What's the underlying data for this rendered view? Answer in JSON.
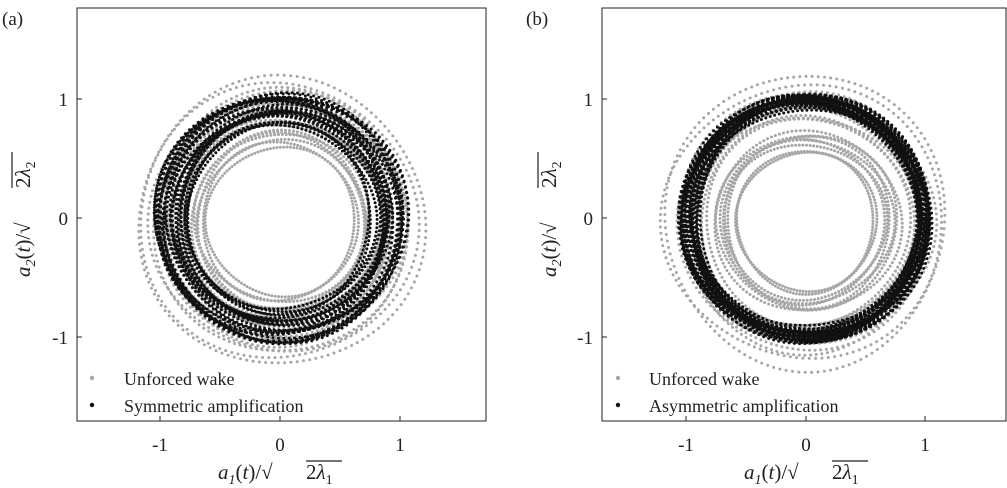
{
  "chart_data": [
    {
      "type": "scatter",
      "panel_label": "(a)",
      "xlim": [
        -1.7,
        1.75
      ],
      "ylim": [
        -1.75,
        1.7
      ],
      "xticks": [
        -1,
        0,
        1
      ],
      "yticks": [
        -1,
        0,
        1
      ],
      "xtick_labels": [
        "-1",
        "0",
        "1"
      ],
      "ytick_labels": [
        "-1",
        "0",
        "1"
      ],
      "grid": false,
      "legend_placement": "bottom-left",
      "series": [
        {
          "name": "Unforced wake",
          "color": "#a6a6a6",
          "radius_range": [
            0.55,
            1.22
          ],
          "center": [
            0,
            -0.03
          ],
          "shape": "annular band of points"
        },
        {
          "name": "Symmetric amplification",
          "color": "#111111",
          "radius_range": [
            0.62,
            1.1
          ],
          "center": [
            0,
            0
          ],
          "shape": "annular band of points, dense outer ring"
        }
      ]
    },
    {
      "type": "scatter",
      "panel_label": "(b)",
      "xlim": [
        -1.7,
        1.75
      ],
      "ylim": [
        -1.75,
        1.7
      ],
      "xticks": [
        -1,
        0,
        1
      ],
      "yticks": [
        -1,
        0,
        1
      ],
      "xtick_labels": [
        "-1",
        "0",
        "1"
      ],
      "ytick_labels": [
        "-1",
        "0",
        "1"
      ],
      "grid": false,
      "legend_placement": "bottom-left",
      "series": [
        {
          "name": "Unforced wake",
          "color": "#a6a6a6",
          "radius_range": [
            0.55,
            1.22
          ],
          "center": [
            0,
            -0.03
          ],
          "shape": "annular band of points"
        },
        {
          "name": "Asymmetric amplification",
          "color": "#111111",
          "radius_range": [
            0.93,
            1.04
          ],
          "center": [
            0,
            0
          ],
          "shape": "thin ring of points"
        }
      ]
    }
  ]
}
